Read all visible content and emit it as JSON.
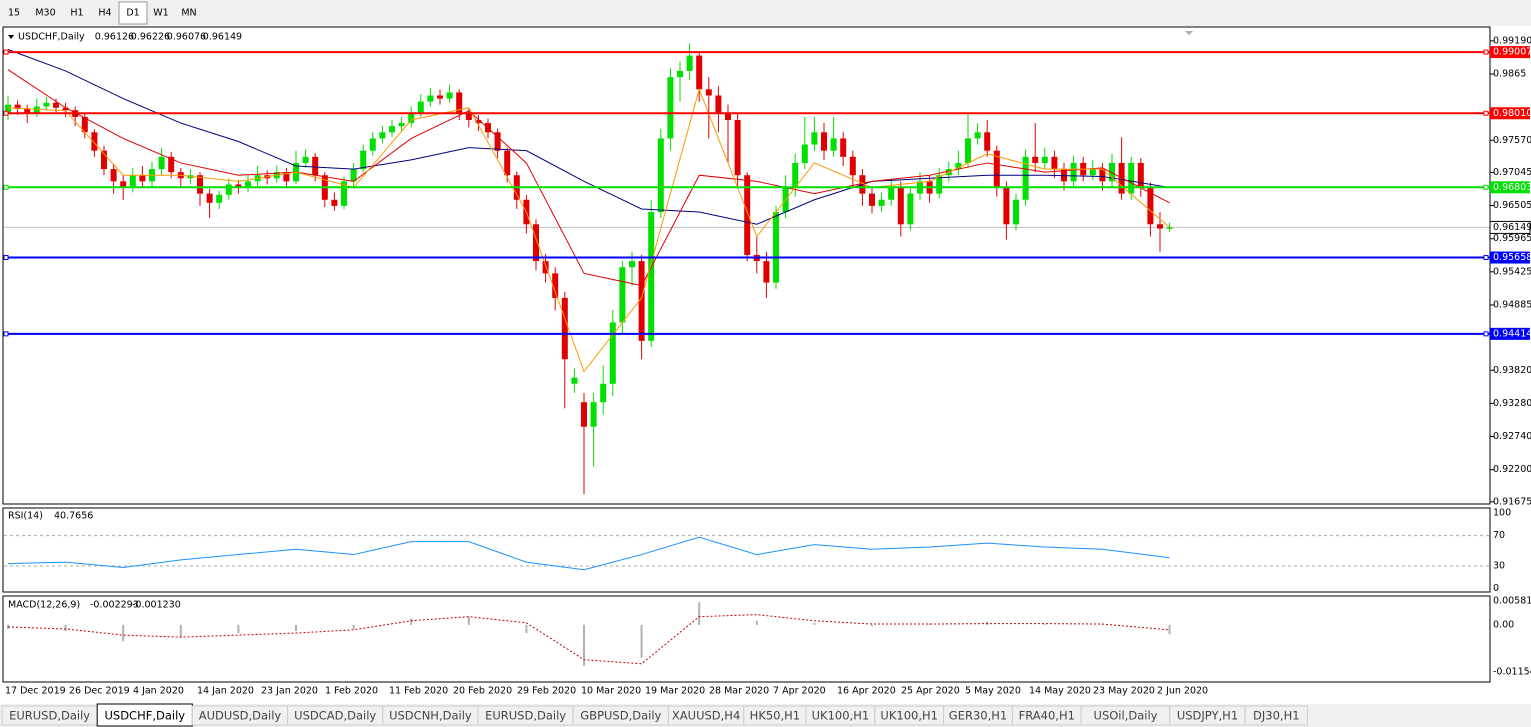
{
  "toolbar": {
    "timeframes": [
      "15",
      "M30",
      "H1",
      "H4",
      "D1",
      "W1",
      "MN"
    ],
    "active": 4
  },
  "chart_data": {
    "type": "candlestick",
    "symbol": "USDCHF,Daily",
    "header": [
      0.96126,
      0.96226,
      0.96076,
      0.96149
    ],
    "up_color": "#00e000",
    "down_color": "#e00000",
    "open": [
      0.98,
      0.9815,
      0.9808,
      0.98,
      0.9812,
      0.9818,
      0.981,
      0.9806,
      0.9795,
      0.977,
      0.974,
      0.971,
      0.969,
      0.968,
      0.97,
      0.969,
      0.971,
      0.973,
      0.9705,
      0.9695,
      0.97,
      0.967,
      0.9655,
      0.9668,
      0.9685,
      0.968,
      0.969,
      0.97,
      0.9695,
      0.9705,
      0.969,
      0.972,
      0.973,
      0.97,
      0.966,
      0.965,
      0.969,
      0.971,
      0.974,
      0.976,
      0.977,
      0.978,
      0.9785,
      0.98,
      0.982,
      0.983,
      0.9825,
      0.9835,
      0.98,
      0.979,
      0.9785,
      0.977,
      0.974,
      0.97,
      0.966,
      0.962,
      0.956,
      0.954,
      0.95,
      0.936,
      0.933,
      0.929,
      0.933,
      0.936,
      0.946,
      0.955,
      0.956,
      0.943,
      0.964,
      0.976,
      0.986,
      0.987,
      0.9895,
      0.984,
      0.983,
      0.98,
      0.979,
      0.97,
      0.957,
      0.956,
      0.9525,
      0.964,
      0.968,
      0.972,
      0.975,
      0.977,
      0.974,
      0.976,
      0.973,
      0.97,
      0.967,
      0.965,
      0.966,
      0.968,
      0.962,
      0.967,
      0.969,
      0.967,
      0.97,
      0.971,
      0.972,
      0.976,
      0.977,
      0.974,
      0.968,
      0.962,
      0.966,
      0.973,
      0.972,
      0.973,
      0.971,
      0.969,
      0.972,
      0.97,
      0.971,
      0.969,
      0.972,
      0.967,
      0.972,
      0.968,
      0.962,
      0.96126
    ],
    "high": [
      0.983,
      0.9822,
      0.9815,
      0.9825,
      0.9828,
      0.9825,
      0.9818,
      0.9812,
      0.98,
      0.9775,
      0.9748,
      0.9718,
      0.97,
      0.9712,
      0.9715,
      0.9722,
      0.9745,
      0.9738,
      0.9712,
      0.971,
      0.9705,
      0.9678,
      0.9675,
      0.9695,
      0.9692,
      0.97,
      0.9715,
      0.9708,
      0.9716,
      0.9712,
      0.974,
      0.9742,
      0.9736,
      0.9705,
      0.9672,
      0.9698,
      0.972,
      0.975,
      0.977,
      0.978,
      0.979,
      0.9795,
      0.9812,
      0.9832,
      0.9842,
      0.984,
      0.9848,
      0.984,
      0.9808,
      0.9798,
      0.9792,
      0.9776,
      0.9745,
      0.9706,
      0.9668,
      0.9628,
      0.9572,
      0.955,
      0.951,
      0.9385,
      0.9345,
      0.9345,
      0.939,
      0.948,
      0.956,
      0.9575,
      0.957,
      0.966,
      0.9775,
      0.9875,
      0.9885,
      0.9915,
      0.99,
      0.986,
      0.9845,
      0.9815,
      0.98,
      0.9705,
      0.96,
      0.9575,
      0.965,
      0.97,
      0.9735,
      0.9795,
      0.9795,
      0.9785,
      0.9795,
      0.977,
      0.974,
      0.971,
      0.968,
      0.9672,
      0.9695,
      0.969,
      0.968,
      0.9705,
      0.97,
      0.9712,
      0.9722,
      0.974,
      0.98,
      0.9785,
      0.979,
      0.9748,
      0.969,
      0.967,
      0.9742,
      0.9785,
      0.9745,
      0.974,
      0.972,
      0.9732,
      0.973,
      0.9725,
      0.972,
      0.9735,
      0.9762,
      0.973,
      0.9728,
      0.9688,
      0.964,
      0.96226
    ],
    "low": [
      0.979,
      0.9798,
      0.9785,
      0.9795,
      0.9805,
      0.98,
      0.9795,
      0.978,
      0.976,
      0.973,
      0.97,
      0.967,
      0.966,
      0.9672,
      0.968,
      0.9682,
      0.97,
      0.9695,
      0.968,
      0.9685,
      0.965,
      0.963,
      0.9645,
      0.966,
      0.967,
      0.9672,
      0.9682,
      0.9685,
      0.9688,
      0.968,
      0.9685,
      0.9712,
      0.969,
      0.9648,
      0.9642,
      0.9645,
      0.9682,
      0.9705,
      0.9732,
      0.9752,
      0.9762,
      0.977,
      0.9778,
      0.9795,
      0.9812,
      0.9815,
      0.9818,
      0.979,
      0.9778,
      0.9772,
      0.976,
      0.9728,
      0.9688,
      0.9645,
      0.9605,
      0.9545,
      0.9525,
      0.948,
      0.932,
      0.9345,
      0.918,
      0.9225,
      0.931,
      0.934,
      0.944,
      0.952,
      0.94,
      0.942,
      0.963,
      0.974,
      0.982,
      0.9855,
      0.982,
      0.976,
      0.977,
      0.972,
      0.968,
      0.956,
      0.954,
      0.95,
      0.9515,
      0.963,
      0.9665,
      0.971,
      0.974,
      0.9725,
      0.973,
      0.9715,
      0.968,
      0.965,
      0.9638,
      0.964,
      0.965,
      0.96,
      0.961,
      0.966,
      0.9655,
      0.9662,
      0.969,
      0.97,
      0.9712,
      0.975,
      0.973,
      0.9665,
      0.9595,
      0.961,
      0.965,
      0.9705,
      0.971,
      0.9695,
      0.9675,
      0.9682,
      0.969,
      0.9692,
      0.9675,
      0.9682,
      0.966,
      0.966,
      0.9665,
      0.96,
      0.9575,
      0.96076
    ],
    "close": [
      0.9815,
      0.9808,
      0.98,
      0.9812,
      0.9818,
      0.981,
      0.9806,
      0.9795,
      0.977,
      0.974,
      0.971,
      0.969,
      0.968,
      0.97,
      0.969,
      0.971,
      0.973,
      0.9705,
      0.9695,
      0.97,
      0.967,
      0.9655,
      0.9668,
      0.9685,
      0.968,
      0.969,
      0.97,
      0.9695,
      0.9705,
      0.969,
      0.972,
      0.973,
      0.97,
      0.966,
      0.965,
      0.969,
      0.971,
      0.974,
      0.976,
      0.977,
      0.978,
      0.9785,
      0.98,
      0.982,
      0.983,
      0.9825,
      0.9835,
      0.98,
      0.979,
      0.9785,
      0.977,
      0.974,
      0.97,
      0.966,
      0.962,
      0.956,
      0.954,
      0.95,
      0.94,
      0.937,
      0.929,
      0.933,
      0.936,
      0.946,
      0.955,
      0.956,
      0.943,
      0.964,
      0.976,
      0.986,
      0.987,
      0.9895,
      0.984,
      0.983,
      0.98,
      0.979,
      0.97,
      0.957,
      0.956,
      0.9525,
      0.964,
      0.968,
      0.972,
      0.975,
      0.977,
      0.974,
      0.976,
      0.973,
      0.97,
      0.967,
      0.965,
      0.966,
      0.968,
      0.962,
      0.967,
      0.969,
      0.967,
      0.97,
      0.971,
      0.972,
      0.976,
      0.977,
      0.974,
      0.968,
      0.962,
      0.966,
      0.973,
      0.972,
      0.973,
      0.971,
      0.969,
      0.972,
      0.97,
      0.971,
      0.969,
      0.972,
      0.967,
      0.972,
      0.968,
      0.962,
      0.9613,
      0.96149
    ],
    "ylim": [
      0.9164,
      0.994
    ],
    "yticks": [
      {
        "value": 0.9919,
        "label": "0.99190"
      },
      0.9865,
      {
        "value": 0.9757,
        "label": "0.97570"
      },
      0.97045,
      0.96505,
      0.95965,
      0.95425,
      0.94885,
      {
        "value": 0.9382,
        "label": "0.93820"
      },
      {
        "value": 0.9328,
        "label": "0.93280"
      },
      {
        "value": 0.9274,
        "label": "0.92740"
      },
      {
        "value": 0.922,
        "label": "0.92200"
      },
      0.91675
    ],
    "levels": [
      {
        "value": 0.99007,
        "color": "#ff0000"
      },
      {
        "value": 0.9801,
        "label": "0.98010",
        "color": "#ff0000"
      },
      {
        "value": 0.96803,
        "color": "#00e000"
      },
      {
        "value": 0.95658,
        "color": "#0000ff"
      },
      {
        "value": 0.94414,
        "color": "#0000ff"
      }
    ],
    "current_price": 0.96149,
    "ma_x": [
      0,
      6,
      12,
      18,
      24,
      30,
      36,
      42,
      48,
      54,
      60,
      66,
      72,
      78,
      84,
      90,
      96,
      102,
      108,
      114,
      121
    ],
    "ma": [
      {
        "color": "#000080",
        "values": [
          0.9905,
          0.987,
          0.9825,
          0.9785,
          0.9755,
          0.9715,
          0.971,
          0.9725,
          0.9745,
          0.974,
          0.969,
          0.9645,
          0.964,
          0.962,
          0.966,
          0.969,
          0.9695,
          0.97,
          0.97,
          0.9698,
          0.968
        ]
      },
      {
        "color": "#e00000",
        "values": [
          0.9872,
          0.981,
          0.976,
          0.972,
          0.97,
          0.9705,
          0.969,
          0.976,
          0.9805,
          0.972,
          0.954,
          0.952,
          0.97,
          0.969,
          0.967,
          0.969,
          0.97,
          0.972,
          0.9705,
          0.9712,
          0.9655
        ]
      },
      {
        "color": "#ff9900",
        "values": [
          0.981,
          0.9805,
          0.97,
          0.97,
          0.969,
          0.9705,
          0.968,
          0.979,
          0.981,
          0.964,
          0.938,
          0.95,
          0.984,
          0.96,
          0.972,
          0.968,
          0.969,
          0.9735,
          0.971,
          0.971,
          0.9615
        ]
      }
    ],
    "x_labels": [
      "17 Dec 2019",
      "26 Dec 2019",
      "4 Jan 2020",
      "14 Jan 2020",
      "23 Jan 2020",
      "1 Feb 2020",
      "11 Feb 2020",
      "20 Feb 2020",
      "29 Feb 2020",
      "10 Mar 2020",
      "19 Mar 2020",
      "28 Mar 2020",
      "7 Apr 2020",
      "16 Apr 2020",
      "25 Apr 2020",
      "5 May 2020",
      "14 May 2020",
      "23 May 2020",
      "2 Jun 2020"
    ],
    "rsi": {
      "label": "RSI(14)",
      "value": 40.7656,
      "color": "#1e90ff",
      "ylim": [
        -3,
        105
      ],
      "yticks": [
        0,
        30,
        70,
        100
      ],
      "values": [
        33,
        35,
        28,
        38,
        45,
        52,
        45,
        62,
        62,
        35,
        25,
        45,
        68,
        45,
        58,
        52,
        55,
        60,
        55,
        52,
        40.7656
      ]
    },
    "macd": {
      "label": "MACD(12,26,9)",
      "main": -0.002293,
      "signal": {
        "value": -0.00123,
        "label": "-0.001230"
      },
      "ylim": [
        -0.0137,
        0.0068
      ],
      "yticks": [
        0.005818,
        {
          "value": 0,
          "label": "0.00"
        },
        -0.011545
      ],
      "histogram": [
        -0.001,
        -0.0015,
        -0.004,
        -0.003,
        -0.002,
        -0.0015,
        -0.001,
        0.0015,
        0.002,
        -0.002,
        -0.01,
        -0.008,
        0.0055,
        0.001,
        0.0005,
        -0.0003,
        0.0003,
        0.0008,
        0.0002,
        0.0001,
        -0.002293
      ],
      "signal_values": [
        -0.0005,
        -0.001,
        -0.0025,
        -0.003,
        -0.0025,
        -0.002,
        -0.0012,
        0.001,
        0.002,
        0.0005,
        -0.0085,
        -0.0095,
        0.002,
        0.0025,
        0.001,
        0.0002,
        0.0002,
        0.0003,
        0.0003,
        0.0002,
        -0.00123
      ]
    }
  },
  "tabs": {
    "items": [
      "EURUSD,Daily",
      "USDCHF,Daily",
      "AUDUSD,Daily",
      "USDCAD,Daily",
      "USDCNH,Daily",
      "EURUSD,Daily",
      "GBPUSD,Daily",
      "XAUUSD,H4",
      "HK50,H1",
      "UK100,H1",
      "UK100,H1",
      "GER30,H1",
      "FRA40,H1",
      "USOil,Daily",
      "USDJPY,H1",
      "DJ30,H1"
    ],
    "active": 1
  }
}
